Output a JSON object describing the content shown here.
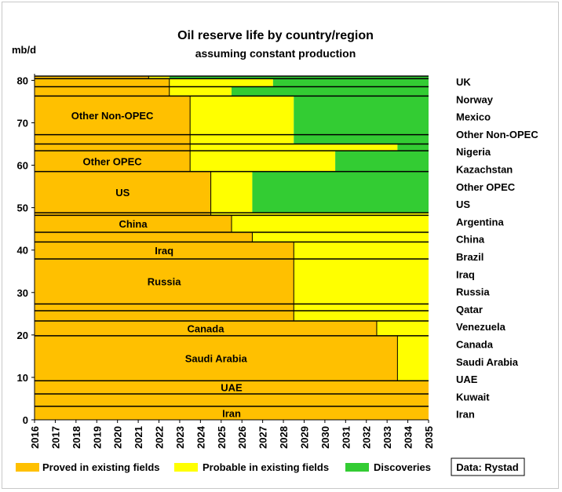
{
  "chart_data": {
    "type": "area",
    "title": "Oil reserve life by country/region",
    "subtitle": "assuming constant production",
    "ylabel": "mb/d",
    "xlabel": "",
    "source_note": "Data: Rystad",
    "xlim": [
      2016,
      2035
    ],
    "ylim": [
      0,
      82
    ],
    "x_ticks": [
      "2016",
      "2017",
      "2018",
      "2019",
      "2020",
      "2021",
      "2022",
      "2023",
      "2024",
      "2025",
      "2026",
      "2027",
      "2028",
      "2029",
      "2030",
      "2031",
      "2032",
      "2033",
      "2034",
      "2035"
    ],
    "y_ticks": [
      "0",
      "10",
      "20",
      "30",
      "40",
      "50",
      "60",
      "70",
      "80"
    ],
    "colors": {
      "proved": "#FFC000",
      "probable": "#FFFF00",
      "discoveries": "#33CC33",
      "divider": "#000000"
    },
    "legend": [
      {
        "key": "proved",
        "label": "Proved in existing fields"
      },
      {
        "key": "probable",
        "label": "Probable in existing fields"
      },
      {
        "key": "discoveries",
        "label": "Discoveries"
      }
    ],
    "right_labels": [
      "UK",
      "Norway",
      "Mexico",
      "Other Non-OPEC",
      "Nigeria",
      "Kazachstan",
      "Other OPEC",
      "US",
      "Argentina",
      "China",
      "Brazil",
      "Iraq",
      "Russia",
      "Qatar",
      "Venezuela",
      "Canada",
      "Saudi Arabia",
      "UAE",
      "Kuwait",
      "Iran"
    ],
    "bands": [
      {
        "name": "Iran",
        "low": 0.0,
        "high": 3.2,
        "proved_end": 2035.0,
        "probable_end": 2035.0,
        "label": "Iran"
      },
      {
        "name": "Kuwait",
        "low": 3.2,
        "high": 6.1,
        "proved_end": 2035.0,
        "probable_end": 2035.0,
        "label": ""
      },
      {
        "name": "UAE",
        "low": 6.1,
        "high": 9.2,
        "proved_end": 2035.0,
        "probable_end": 2035.0,
        "label": "UAE"
      },
      {
        "name": "Saudi Arabia",
        "low": 9.2,
        "high": 19.8,
        "proved_end": 2033.5,
        "probable_end": 2035.0,
        "label": "Saudi Arabia"
      },
      {
        "name": "Canada",
        "low": 19.8,
        "high": 23.3,
        "proved_end": 2032.5,
        "probable_end": 2035.0,
        "label": "Canada"
      },
      {
        "name": "Venezuela",
        "low": 23.3,
        "high": 25.7,
        "proved_end": 2028.5,
        "probable_end": 2035.0,
        "label": ""
      },
      {
        "name": "Qatar",
        "low": 25.7,
        "high": 27.3,
        "proved_end": 2028.5,
        "probable_end": 2035.0,
        "label": ""
      },
      {
        "name": "Russia",
        "low": 27.3,
        "high": 37.9,
        "proved_end": 2028.5,
        "probable_end": 2035.0,
        "label": "Russia"
      },
      {
        "name": "Iraq",
        "low": 37.9,
        "high": 41.9,
        "proved_end": 2028.5,
        "probable_end": 2035.0,
        "label": "Iraq"
      },
      {
        "name": "Brazil",
        "low": 41.9,
        "high": 44.2,
        "proved_end": 2026.5,
        "probable_end": 2035.0,
        "label": ""
      },
      {
        "name": "China",
        "low": 44.2,
        "high": 48.2,
        "proved_end": 2025.5,
        "probable_end": 2035.0,
        "label": "China"
      },
      {
        "name": "Argentina",
        "low": 48.2,
        "high": 48.8,
        "proved_end": 2024.5,
        "probable_end": 2035.0,
        "label": ""
      },
      {
        "name": "US",
        "low": 48.8,
        "high": 58.5,
        "proved_end": 2024.5,
        "probable_end": 2026.5,
        "label": "US"
      },
      {
        "name": "Other OPEC",
        "low": 58.5,
        "high": 63.4,
        "proved_end": 2023.5,
        "probable_end": 2030.5,
        "label": "Other OPEC"
      },
      {
        "name": "Kazachstan",
        "low": 63.4,
        "high": 65.0,
        "proved_end": 2023.5,
        "probable_end": 2033.5,
        "label": ""
      },
      {
        "name": "Nigeria",
        "low": 65.0,
        "high": 67.2,
        "proved_end": 2023.5,
        "probable_end": 2028.5,
        "label": ""
      },
      {
        "name": "Other Non-OPEC",
        "low": 67.2,
        "high": 76.3,
        "proved_end": 2023.5,
        "probable_end": 2028.5,
        "label": "Other Non-OPEC"
      },
      {
        "name": "Mexico",
        "low": 76.3,
        "high": 78.5,
        "proved_end": 2022.5,
        "probable_end": 2025.5,
        "label": ""
      },
      {
        "name": "Norway",
        "low": 78.5,
        "high": 80.4,
        "proved_end": 2022.5,
        "probable_end": 2027.5,
        "label": ""
      },
      {
        "name": "UK",
        "low": 80.4,
        "high": 81.0,
        "proved_end": 2021.5,
        "probable_end": 2022.5,
        "label": ""
      }
    ]
  }
}
